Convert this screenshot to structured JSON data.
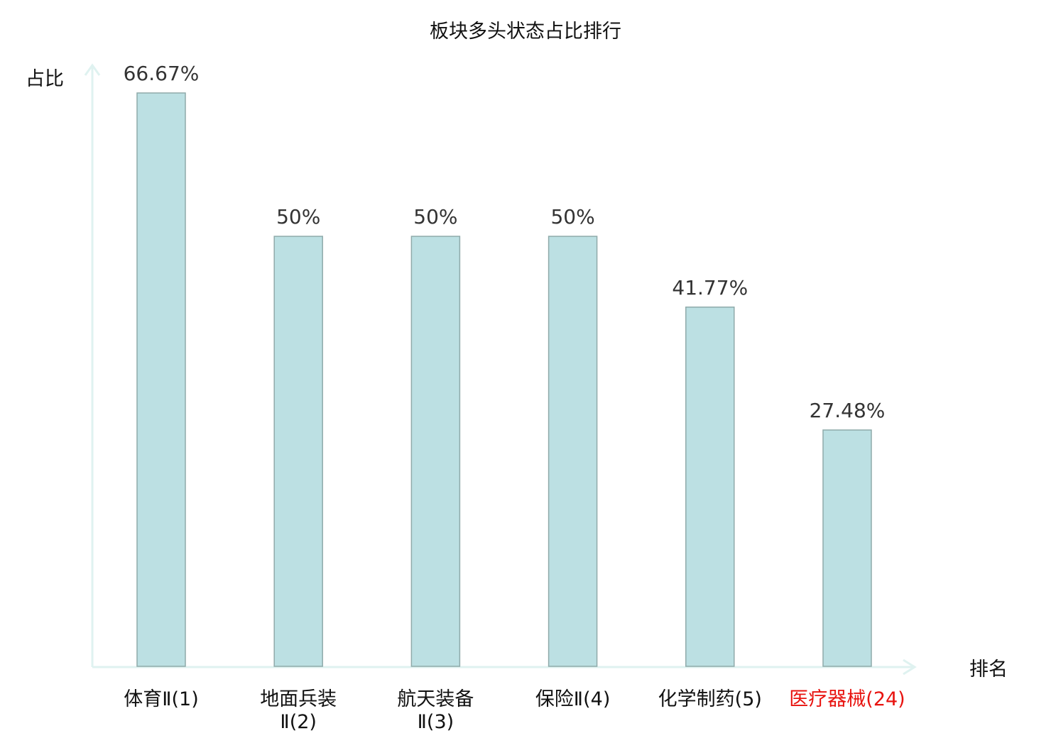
{
  "chart_data": {
    "type": "bar",
    "title": "板块多头状态占比排行",
    "ylabel": "占比",
    "xlabel": "排名",
    "categories": [
      [
        "体育Ⅱ(1)"
      ],
      [
        "地面兵装",
        "Ⅱ(2)"
      ],
      [
        "航天装备",
        "Ⅱ(3)"
      ],
      [
        "保险Ⅱ(4)"
      ],
      [
        "化学制药(5)"
      ],
      [
        "医疗器械(24)"
      ]
    ],
    "values": [
      66.67,
      50,
      50,
      50,
      41.77,
      27.48
    ],
    "data_labels": [
      "66.67%",
      "50%",
      "50%",
      "50%",
      "41.77%",
      "27.48%"
    ],
    "highlight_index": 5,
    "ylim": [
      0,
      66.67
    ],
    "grid": false,
    "colors": {
      "bar_fill": "#bce0e3",
      "bar_stroke": "#8faaaa",
      "axis": "#dff2f0",
      "label": "#333333",
      "highlight_label": "#e8130f"
    }
  }
}
